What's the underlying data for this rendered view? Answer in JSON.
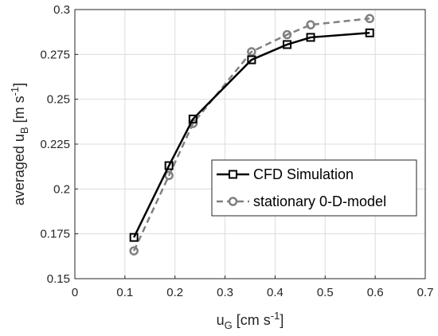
{
  "chart_data": {
    "type": "line",
    "xlabel": {
      "main": "u",
      "sub": "G",
      "unit_pre": " [cm s",
      "unit_sup": "-1",
      "unit_post": "]"
    },
    "ylabel": {
      "main": "averaged u",
      "sub": "B",
      "unit_pre": " [m s",
      "unit_sup": "-1",
      "unit_post": "]"
    },
    "xlim": [
      0,
      0.7
    ],
    "ylim": [
      0.15,
      0.3
    ],
    "xticks": [
      0,
      0.1,
      0.2,
      0.3,
      0.4,
      0.5,
      0.6,
      0.7
    ],
    "xtick_labels": [
      "0",
      "0.1",
      "0.2",
      "0.3",
      "0.4",
      "0.5",
      "0.6",
      "0.7"
    ],
    "yticks": [
      0.15,
      0.175,
      0.2,
      0.225,
      0.25,
      0.275,
      0.3
    ],
    "ytick_labels": [
      "0.15",
      "0.175",
      "0.2",
      "0.225",
      "0.25",
      "0.275",
      "0.3"
    ],
    "grid": true,
    "legend_position": "center-right",
    "series": [
      {
        "name": "CFD Simulation",
        "color": "#000000",
        "line": "solid",
        "marker": "square",
        "x": [
          0.118,
          0.188,
          0.236,
          0.353,
          0.424,
          0.471,
          0.589
        ],
        "y": [
          0.173,
          0.213,
          0.239,
          0.272,
          0.2805,
          0.2845,
          0.287
        ]
      },
      {
        "name": "stationary 0-D-model",
        "color": "#808080",
        "line": "dashed",
        "marker": "circle",
        "x": [
          0.118,
          0.188,
          0.236,
          0.353,
          0.424,
          0.471,
          0.589
        ],
        "y": [
          0.1655,
          0.2075,
          0.2365,
          0.2765,
          0.286,
          0.2915,
          0.295
        ]
      }
    ]
  }
}
